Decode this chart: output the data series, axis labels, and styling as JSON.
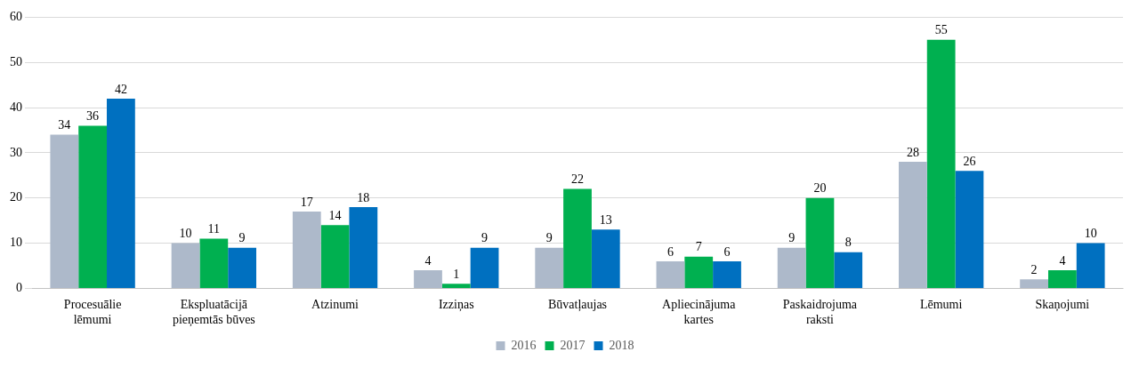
{
  "chart_data": {
    "type": "bar",
    "categories": [
      "Procesuālie lēmumi",
      "Ekspluatācijā pieņemtās būves",
      "Atzinumi",
      "Izziņas",
      "Būvatļaujas",
      "Apliecinājuma kartes",
      "Paskaidrojuma raksti",
      "Lēmumi",
      "Skaņojumi"
    ],
    "series": [
      {
        "name": "2016",
        "color": "#adb9ca",
        "values": [
          34,
          10,
          17,
          4,
          9,
          6,
          9,
          28,
          2
        ]
      },
      {
        "name": "2017",
        "color": "#00b050",
        "values": [
          36,
          11,
          14,
          1,
          22,
          7,
          20,
          55,
          4
        ]
      },
      {
        "name": "2018",
        "color": "#0070c0",
        "values": [
          42,
          9,
          18,
          9,
          13,
          6,
          8,
          26,
          10
        ]
      }
    ],
    "ylim": [
      0,
      60
    ],
    "yticks": [
      0,
      10,
      20,
      30,
      40,
      50,
      60
    ],
    "grid": "y",
    "legend": "bottom",
    "data_labels": true
  }
}
